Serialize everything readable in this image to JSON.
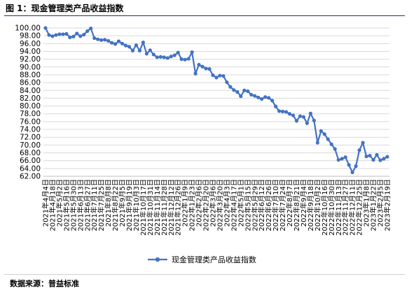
{
  "figure": {
    "title": "图 1：现金管理类产品收益指数",
    "source": "数据来源：普益标准"
  },
  "chart_data": {
    "type": "line",
    "color": "#4472c4",
    "grid": true,
    "legend_position": "bottom",
    "ylim": [
      62.0,
      100.0
    ],
    "yticks": [
      "62.00",
      "64.00",
      "66.00",
      "68.00",
      "70.00",
      "72.00",
      "74.00",
      "76.00",
      "78.00",
      "80.00",
      "82.00",
      "84.00",
      "86.00",
      "88.00",
      "90.00",
      "92.00",
      "94.00",
      "96.00",
      "98.00",
      "100.00"
    ],
    "x": [
      "2021年4月4日",
      "2021年4月11日",
      "2021年4月18日",
      "2021年4月25日",
      "2021年5月2日",
      "2021年5月9日",
      "2021年5月16日",
      "2021年5月23日",
      "2021年5月30日",
      "2021年6月6日",
      "2021年6月13日",
      "2021年6月20日",
      "2021年6月27日",
      "2021年7月4日",
      "2021年7月11日",
      "2021年7月18日",
      "2021年7月25日",
      "2021年8月1日",
      "2021年8月8日",
      "2021年8月15日",
      "2021年8月22日",
      "2021年8月29日",
      "2021年9月5日",
      "2021年9月12日",
      "2021年9月19日",
      "2021年9月26日",
      "2021年10月3日",
      "2021年10月10日",
      "2021年10月17日",
      "2021年10月24日",
      "2021年10月31日",
      "2021年11月7日",
      "2021年11月14日",
      "2021年11月21日",
      "2021年11月28日",
      "2021年12月5日",
      "2021年12月12日",
      "2021年12月19日",
      "2021年12月26日",
      "2022年1月2日",
      "2022年1月9日",
      "2022年1月16日",
      "2022年1月23日",
      "2022年1月30日",
      "2022年2月6日",
      "2022年2月13日",
      "2022年2月20日",
      "2022年2月27日",
      "2022年3月6日",
      "2022年3月13日",
      "2022年3月20日",
      "2022年3月27日",
      "2022年4月3日",
      "2022年4月10日",
      "2022年4月17日",
      "2022年4月24日",
      "2022年5月1日",
      "2022年5月8日",
      "2022年5月15日",
      "2022年5月22日",
      "2022年5月29日",
      "2022年6月5日",
      "2022年6月12日",
      "2022年6月19日",
      "2022年6月26日",
      "2022年7月3日",
      "2022年7月10日",
      "2022年7月17日",
      "2022年7月24日",
      "2022年7月31日",
      "2022年8月7日",
      "2022年8月14日",
      "2022年8月21日",
      "2022年8月28日",
      "2022年9月4日",
      "2022年9月11日",
      "2022年9月18日",
      "2022年9月25日",
      "2022年10月2日",
      "2022年10月9日",
      "2022年10月16日",
      "2022年10月23日",
      "2022年10月30日",
      "2022年11月6日",
      "2022年11月13日",
      "2022年11月20日",
      "2022年11月27日",
      "2022年12月4日",
      "2022年12月11日",
      "2022年12月18日",
      "2022年12月25日",
      "2023年1月1日",
      "2023年1月8日",
      "2023年1月15日",
      "2023年1月22日",
      "2023年1月29日",
      "2023年2月5日",
      "2023年2月12日",
      "2023年2月19日"
    ],
    "xtick_labels": [
      "2021年4月4日",
      "2021年4月18日",
      "2021年5月2日",
      "2021年5月16日",
      "2021年5月30日",
      "2021年6月13日",
      "2021年6月27日",
      "2021年7月11日",
      "2021年7月25日",
      "2021年8月8日",
      "2021年8月22日",
      "2021年9月5日",
      "2021年9月19日",
      "2021年10月3日",
      "2021年10月17日",
      "2021年10月31日",
      "2021年11月14日",
      "2021年11月28日",
      "2021年12月12日",
      "2021年12月26日",
      "2022年1月9日",
      "2022年1月23日",
      "2022年2月6日",
      "2022年2月20日",
      "2022年3月6日",
      "2022年3月20日",
      "2022年4月3日",
      "2022年4月17日",
      "2022年5月1日",
      "2022年5月15日",
      "2022年5月29日",
      "2022年6月12日",
      "2022年6月26日",
      "2022年7月10日",
      "2022年7月24日",
      "2022年8月7日",
      "2022年8月21日",
      "2022年9月4日",
      "2022年9月18日",
      "2022年10月2日",
      "2022年10月16日",
      "2022年10月30日",
      "2022年11月13日",
      "2022年11月27日",
      "2022年12月11日",
      "2022年12月25日",
      "2023年1月8日",
      "2023年1月22日",
      "2023年2月5日",
      "2023年2月19日"
    ],
    "series": [
      {
        "name": "现金管理类产品收益指数",
        "values": [
          100.0,
          98.2,
          97.9,
          98.2,
          98.4,
          98.4,
          98.5,
          97.6,
          97.8,
          98.6,
          97.9,
          98.3,
          99.2,
          99.9,
          97.4,
          97.1,
          96.9,
          97.0,
          96.7,
          96.2,
          95.9,
          96.6,
          96.0,
          95.5,
          95.2,
          94.2,
          95.6,
          94.2,
          96.3,
          93.4,
          94.3,
          93.2,
          92.5,
          92.6,
          92.5,
          92.3,
          92.7,
          93.0,
          93.7,
          92.0,
          91.9,
          92.1,
          93.8,
          88.3,
          90.6,
          90.1,
          89.6,
          89.5,
          87.9,
          87.3,
          87.8,
          87.7,
          86.1,
          84.9,
          84.1,
          83.6,
          82.5,
          84.0,
          83.8,
          82.9,
          82.6,
          82.2,
          81.8,
          82.3,
          82.1,
          81.4,
          79.9,
          78.7,
          78.6,
          78.5,
          78.0,
          77.6,
          76.2,
          77.4,
          77.2,
          75.6,
          78.1,
          76.3,
          70.6,
          73.6,
          72.8,
          71.5,
          70.2,
          69.0,
          66.2,
          66.5,
          66.9,
          64.9,
          63.0,
          64.6,
          68.7,
          70.6,
          67.1,
          67.3,
          66.2,
          67.5,
          66.1,
          66.5,
          67.0
        ]
      }
    ]
  }
}
